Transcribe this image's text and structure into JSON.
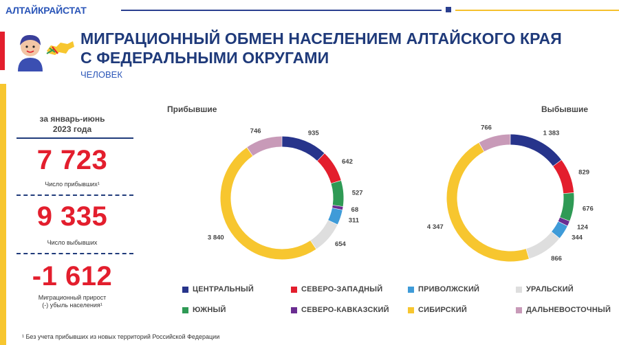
{
  "header": {
    "brand": "АЛТАЙКРАЙСТАТ",
    "title_line1": "МИГРАЦИОННЫЙ ОБМЕН НАСЕЛЕНИЕМ АЛТАЙСКОГО КРАЯ",
    "title_line2": "С ФЕДЕРАЛЬНЫМИ ОКРУГАМИ",
    "units": "ЧЕЛОВЕК"
  },
  "summary": {
    "period_line1": "за январь-июнь",
    "period_line2": "2023 года",
    "arrivals_value": "7 723",
    "arrivals_caption": "Число прибывших¹",
    "departures_value": "9 335",
    "departures_caption": "Число выбывших",
    "net_value": "-1 612",
    "net_caption_line1": "Миграционный прирост",
    "net_caption_line2": "(-) убыль населения¹"
  },
  "colors": {
    "brand_blue": "#2a55b8",
    "title_navy": "#1f3a7a",
    "accent_red": "#e31e2d",
    "accent_yellow": "#f7c62f"
  },
  "chart_data": [
    {
      "type": "pie",
      "donut": true,
      "title": "Прибывшие",
      "categories": [
        "ЦЕНТРАЛЬНЫЙ",
        "СЕВЕРО-ЗАПАДНЫЙ",
        "ЮЖНЫЙ",
        "СЕВЕРО-КАВКАЗСКИЙ",
        "ПРИВОЛЖСКИЙ",
        "УРАЛЬСКИЙ",
        "СИБИРСКИЙ",
        "ДАЛЬНЕВОСТОЧНЫЙ"
      ],
      "values": [
        935,
        642,
        527,
        68,
        311,
        654,
        3840,
        746
      ],
      "labels": [
        "935",
        "642",
        "527",
        "68",
        "311",
        "654",
        "3 840",
        "746"
      ]
    },
    {
      "type": "pie",
      "donut": true,
      "title": "Выбывшие",
      "categories": [
        "ЦЕНТРАЛЬНЫЙ",
        "СЕВЕРО-ЗАПАДНЫЙ",
        "ЮЖНЫЙ",
        "СЕВЕРО-КАВКАЗСКИЙ",
        "ПРИВОЛЖСКИЙ",
        "УРАЛЬСКИЙ",
        "СИБИРСКИЙ",
        "ДАЛЬНЕВОСТОЧНЫЙ"
      ],
      "values": [
        1383,
        829,
        676,
        124,
        344,
        866,
        4347,
        766
      ],
      "labels": [
        "1 383",
        "829",
        "676",
        "124",
        "344",
        "866",
        "4 347",
        "766"
      ]
    }
  ],
  "legend": [
    {
      "label": "ЦЕНТРАЛЬНЫЙ",
      "color": "#27348b"
    },
    {
      "label": "СЕВЕРО-ЗАПАДНЫЙ",
      "color": "#e31e2d"
    },
    {
      "label": "ПРИВОЛЖСКИЙ",
      "color": "#3f9bd8"
    },
    {
      "label": "УРАЛЬСКИЙ",
      "color": "#dedede"
    },
    {
      "label": "ЮЖНЫЙ",
      "color": "#2f9a55"
    },
    {
      "label": "СЕВЕРО-КАВКАЗСКИЙ",
      "color": "#6a2d91"
    },
    {
      "label": "СИБИРСКИЙ",
      "color": "#f7c62f"
    },
    {
      "label": "ДАЛЬНЕВОСТОЧНЫЙ",
      "color": "#c89ab8"
    }
  ],
  "footnote": "¹ Без учета прибывших из новых территорий Российской Федерации"
}
